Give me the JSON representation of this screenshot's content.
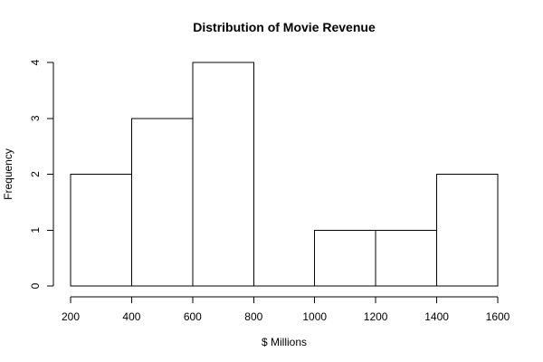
{
  "chart_data": {
    "type": "bar",
    "title": "Distribution of Movie Revenue",
    "xlabel": "$ Millions",
    "ylabel": "Frequency",
    "bins": [
      {
        "start": 200,
        "end": 400,
        "count": 2
      },
      {
        "start": 400,
        "end": 600,
        "count": 3
      },
      {
        "start": 600,
        "end": 800,
        "count": 4
      },
      {
        "start": 800,
        "end": 1000,
        "count": 0
      },
      {
        "start": 1000,
        "end": 1200,
        "count": 1
      },
      {
        "start": 1200,
        "end": 1400,
        "count": 1
      },
      {
        "start": 1400,
        "end": 1600,
        "count": 2
      }
    ],
    "x_ticks": [
      "200",
      "400",
      "600",
      "800",
      "1000",
      "1200",
      "1400",
      "1600"
    ],
    "y_ticks": [
      "0",
      "1",
      "2",
      "3",
      "4"
    ],
    "xlim": [
      200,
      1600
    ],
    "ylim": [
      0,
      4
    ],
    "grid": false,
    "legend": "none",
    "colors": {
      "bar_fill": "#ffffff",
      "bar_stroke": "#000000",
      "axis": "#000000"
    }
  }
}
